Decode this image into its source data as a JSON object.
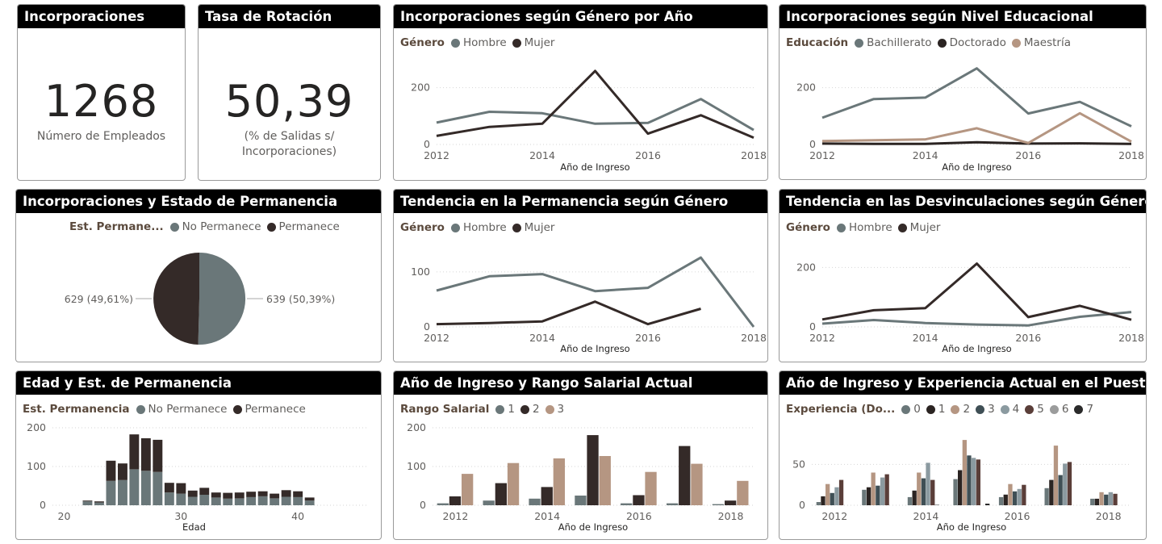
{
  "colors": {
    "hombre": "#6a7779",
    "mujer": "#342a28",
    "bachillerato": "#6a7779",
    "doctorado": "#2b2422",
    "maestria": "#b59682",
    "no_permanece": "#6a7779",
    "permanece": "#342a28",
    "rango": [
      "#6a7779",
      "#342a28",
      "#b59682"
    ],
    "exp": [
      "#6a7779",
      "#2b2422",
      "#b59682",
      "#3f4f55",
      "#8b9aa0",
      "#5a3e39",
      "#9b9c9c",
      "#2a2a2a"
    ]
  },
  "kpi1": {
    "title": "Incorporaciones",
    "value": "1268",
    "sub1": "Número de Empleados"
  },
  "kpi2": {
    "title": "Tasa de Rotación",
    "value": "50,39",
    "sub1": "(% de Salidas s/",
    "sub2": "Incorporaciones)"
  },
  "c1": {
    "title": "Incorporaciones según Género por Año",
    "legend_title": "Género",
    "legend": [
      "Hombre",
      "Mujer"
    ]
  },
  "c2": {
    "title": "Incorporaciones según Nivel Educacional",
    "legend_title": "Educación",
    "legend": [
      "Bachillerato",
      "Doctorado",
      "Maestría"
    ]
  },
  "c3": {
    "title": "Incorporaciones y Estado de Permanencia",
    "legend_title": "Est. Permane...",
    "legend": [
      "No Permanece",
      "Permanece"
    ],
    "label_left": "629 (49,61%)",
    "label_right": "639 (50,39%)"
  },
  "c4": {
    "title": "Tendencia en la Permanencia según Género",
    "legend_title": "Género",
    "legend": [
      "Hombre",
      "Mujer"
    ]
  },
  "c5": {
    "title": "Tendencia en las Desvinculaciones según Género",
    "legend_title": "Género",
    "legend": [
      "Hombre",
      "Mujer"
    ]
  },
  "c6": {
    "title": "Edad y Est. de Permanencia",
    "legend_title": "Est. Permanencia",
    "legend": [
      "No Permanece",
      "Permanece"
    ]
  },
  "c7": {
    "title": "Año de Ingreso y Rango Salarial Actual",
    "legend_title": "Rango Salarial",
    "legend": [
      "1",
      "2",
      "3"
    ]
  },
  "c8": {
    "title": "Año de Ingreso y Experiencia Actual en el Puesto",
    "legend_title": "Experiencia (Do...",
    "legend": [
      "0",
      "1",
      "2",
      "3",
      "4",
      "5",
      "6",
      "7"
    ]
  },
  "chart_data": [
    {
      "id": "c1",
      "type": "line",
      "title": "Incorporaciones según Género por Año",
      "xlabel": "Año de Ingreso",
      "ylabel": "",
      "x": [
        2012,
        2013,
        2014,
        2015,
        2016,
        2017,
        2018
      ],
      "xticks": [
        2012,
        2014,
        2016,
        2018
      ],
      "yticks": [
        0,
        200
      ],
      "ylim": [
        0,
        270
      ],
      "series": [
        {
          "name": "Hombre",
          "values": [
            77,
            115,
            110,
            73,
            76,
            160,
            51
          ]
        },
        {
          "name": "Mujer",
          "values": [
            30,
            62,
            73,
            259,
            38,
            103,
            24
          ]
        }
      ]
    },
    {
      "id": "c2",
      "type": "line",
      "title": "Incorporaciones según Nivel Educacional",
      "xlabel": "Año de Ingreso",
      "ylabel": "",
      "x": [
        2012,
        2013,
        2014,
        2015,
        2016,
        2017,
        2018
      ],
      "xticks": [
        2012,
        2014,
        2016,
        2018
      ],
      "yticks": [
        0,
        200
      ],
      "ylim": [
        0,
        270
      ],
      "series": [
        {
          "name": "Bachillerato",
          "values": [
            94,
            160,
            165,
            268,
            109,
            150,
            64
          ]
        },
        {
          "name": "Doctorado",
          "values": [
            3,
            2,
            2,
            8,
            3,
            4,
            2
          ]
        },
        {
          "name": "Maestría",
          "values": [
            12,
            15,
            18,
            57,
            5,
            110,
            10
          ]
        }
      ]
    },
    {
      "id": "c3",
      "type": "pie",
      "title": "Incorporaciones y Estado de Permanencia",
      "slices": [
        {
          "name": "No Permanece",
          "value": 639,
          "label": "639 (50,39%)"
        },
        {
          "name": "Permanece",
          "value": 629,
          "label": "629 (49,61%)"
        }
      ]
    },
    {
      "id": "c4",
      "type": "line",
      "title": "Tendencia en la Permanencia según Género",
      "xlabel": "Año de Ingreso",
      "ylabel": "",
      "x": [
        2012,
        2013,
        2014,
        2015,
        2016,
        2017,
        2018
      ],
      "xticks": [
        2012,
        2014,
        2016,
        2018
      ],
      "yticks": [
        0,
        100
      ],
      "ylim": [
        0,
        135
      ],
      "series": [
        {
          "name": "Hombre",
          "values": [
            66,
            92,
            96,
            65,
            71,
            126,
            0
          ]
        },
        {
          "name": "Mujer",
          "values": [
            5,
            7,
            10,
            46,
            5,
            33,
            null
          ]
        }
      ]
    },
    {
      "id": "c5",
      "type": "line",
      "title": "Tendencia en las Desvinculaciones según Género",
      "xlabel": "Año de Ingreso",
      "ylabel": "",
      "x": [
        2012,
        2013,
        2014,
        2015,
        2016,
        2017,
        2018
      ],
      "xticks": [
        2012,
        2014,
        2016,
        2018
      ],
      "yticks": [
        0,
        200
      ],
      "ylim": [
        0,
        250
      ],
      "series": [
        {
          "name": "Hombre",
          "values": [
            11,
            23,
            13,
            8,
            5,
            34,
            50
          ]
        },
        {
          "name": "Mujer",
          "values": [
            25,
            56,
            63,
            213,
            33,
            71,
            24
          ]
        }
      ]
    },
    {
      "id": "c6",
      "type": "bar",
      "stacked": true,
      "title": "Edad y Est. de Permanencia",
      "xlabel": "Edad",
      "ylabel": "",
      "x": [
        22,
        23,
        24,
        25,
        26,
        27,
        28,
        29,
        30,
        31,
        32,
        33,
        34,
        35,
        36,
        37,
        38,
        39,
        40,
        41
      ],
      "xticks": [
        20,
        30,
        40
      ],
      "xlim": [
        19,
        46
      ],
      "yticks": [
        0,
        100,
        200
      ],
      "ylim": [
        0,
        200
      ],
      "series": [
        {
          "name": "No Permanece",
          "values": [
            10,
            7,
            63,
            65,
            93,
            89,
            86,
            33,
            30,
            22,
            27,
            20,
            17,
            18,
            21,
            23,
            18,
            22,
            21,
            12
          ]
        },
        {
          "name": "Permanece",
          "values": [
            2,
            3,
            52,
            43,
            90,
            84,
            83,
            25,
            27,
            16,
            18,
            13,
            15,
            15,
            14,
            13,
            12,
            17,
            15,
            8
          ]
        }
      ]
    },
    {
      "id": "c7",
      "type": "bar",
      "title": "Año de Ingreso y Rango Salarial Actual",
      "xlabel": "Año de Ingreso",
      "ylabel": "",
      "x": [
        2012,
        2013,
        2014,
        2015,
        2016,
        2017,
        2018
      ],
      "xticks": [
        2012,
        2014,
        2016,
        2018
      ],
      "yticks": [
        0,
        100,
        200
      ],
      "ylim": [
        0,
        200
      ],
      "series": [
        {
          "name": "1",
          "values": [
            5,
            12,
            17,
            25,
            5,
            5,
            3
          ]
        },
        {
          "name": "2",
          "values": [
            23,
            57,
            47,
            181,
            26,
            153,
            12
          ]
        },
        {
          "name": "3",
          "values": [
            81,
            109,
            121,
            127,
            86,
            107,
            63
          ]
        }
      ]
    },
    {
      "id": "c8",
      "type": "bar",
      "title": "Año de Ingreso y Experiencia Actual en el Puesto",
      "xlabel": "Año de Ingreso",
      "ylabel": "",
      "x": [
        2012,
        2013,
        2014,
        2015,
        2016,
        2017,
        2018
      ],
      "xticks": [
        2012,
        2014,
        2016,
        2018
      ],
      "yticks": [
        0,
        50
      ],
      "ylim": [
        0,
        85
      ],
      "series": [
        {
          "name": "0",
          "values": [
            4,
            19,
            10,
            32,
            10,
            21,
            8
          ]
        },
        {
          "name": "1",
          "values": [
            11,
            22,
            18,
            43,
            13,
            31,
            8
          ]
        },
        {
          "name": "2",
          "values": [
            26,
            40,
            40,
            80,
            26,
            73,
            16
          ]
        },
        {
          "name": "3",
          "values": [
            15,
            24,
            33,
            61,
            17,
            37,
            13
          ]
        },
        {
          "name": "4",
          "values": [
            22,
            34,
            52,
            58,
            20,
            51,
            16
          ]
        },
        {
          "name": "5",
          "values": [
            31,
            38,
            31,
            56,
            25,
            53,
            14
          ]
        },
        {
          "name": "6",
          "values": [
            0,
            0,
            1,
            0,
            0,
            0,
            0
          ]
        },
        {
          "name": "7",
          "values": [
            0,
            0,
            0,
            2,
            0,
            0,
            0
          ]
        }
      ]
    }
  ]
}
